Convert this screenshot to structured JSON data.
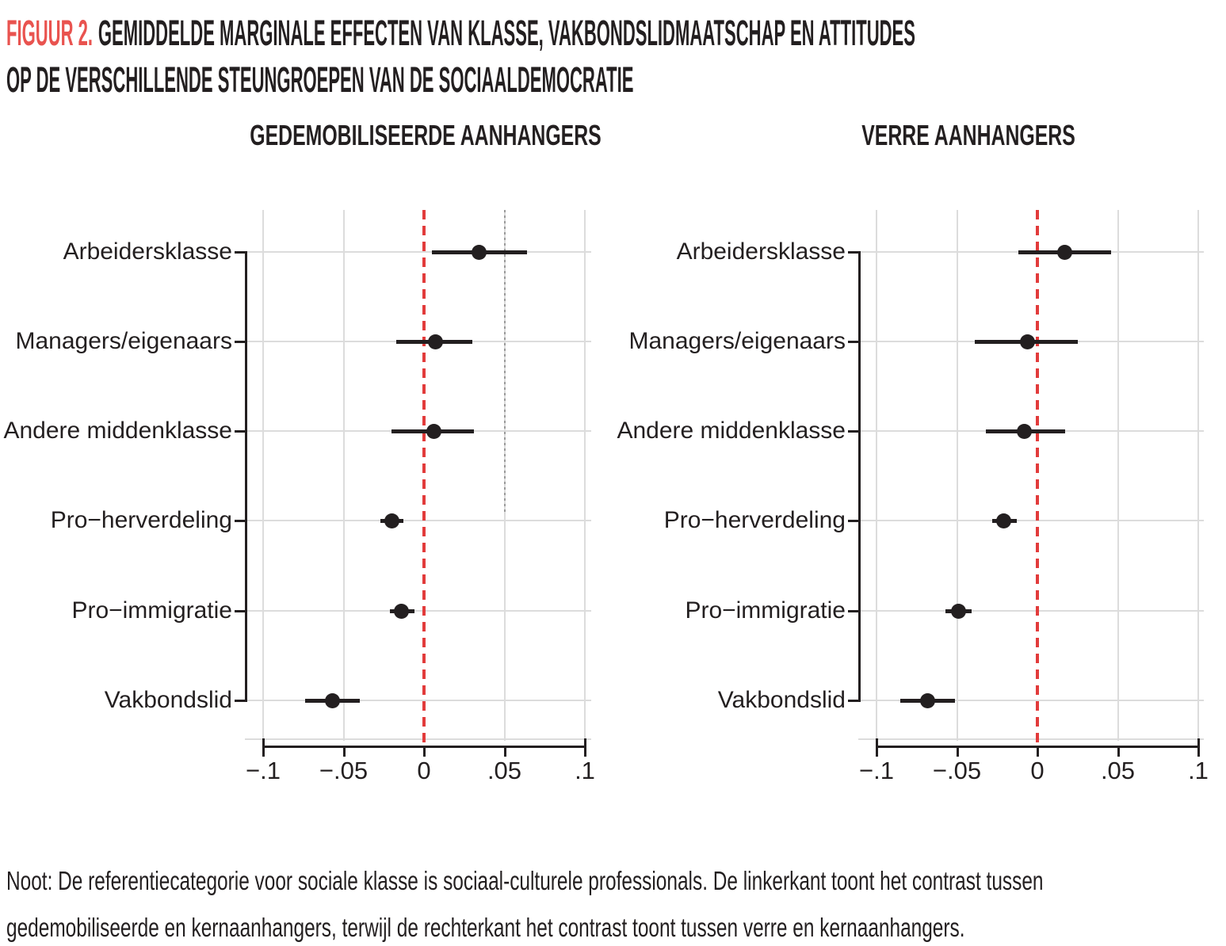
{
  "figure": {
    "label": "FIGUUR 2.",
    "title_line1": "GEMIDDELDE MARGINALE EFFECTEN VAN KLASSE, VAKBONDSLIDMAATSCHAP EN ATTITUDES",
    "title_line2": "OP DE VERSCHILLENDE STEUNGROEPEN VAN DE SOCIAALDEMOCRATIE",
    "note_line1": "Noot: De referentiecategorie voor sociale klasse is sociaal-culturele professionals. De linkerkant toont het contrast tussen",
    "note_line2": "gedemobiliseerde en kernaanhangers, terwijl de rechterkant het contrast toont tussen verre en kernaanhangers."
  },
  "colors": {
    "figure_label_red": "#e9534f",
    "zero_line_red": "#e23b3b",
    "gridline_gray": "#dcdcdc",
    "dotted_guide_gray": "#9a9a9a",
    "ink_black": "#231f20"
  },
  "chart_data": [
    {
      "type": "scatter",
      "subtype": "coefficient-dot-whisker",
      "title": "GEDEMOBILISEERDE AANHANGERS",
      "categories": [
        "Arbeidersklasse",
        "Managers/eigenaars",
        "Andere middenklasse",
        "Pro−herverdeling",
        "Pro−immigratie",
        "Vakbondslid"
      ],
      "series": [
        {
          "name": "Gemiddeld marginaal effect",
          "estimates": [
            0.034,
            0.007,
            0.006,
            -0.02,
            -0.014,
            -0.057
          ],
          "ci_low": [
            0.005,
            -0.017,
            -0.02,
            -0.027,
            -0.021,
            -0.074
          ],
          "ci_high": [
            0.064,
            0.03,
            0.031,
            -0.013,
            -0.006,
            -0.04
          ]
        }
      ],
      "x_ticks": [
        "−.1",
        "−.05",
        "0",
        ".05",
        ".1"
      ],
      "x_tick_values": [
        -0.1,
        -0.05,
        0,
        0.05,
        0.1
      ],
      "xlim": [
        -0.111,
        0.104
      ],
      "xlabel": "",
      "ylabel": "",
      "zero_line": {
        "x": 0,
        "style": "dashed"
      },
      "annotations": [
        {
          "type": "dotted-vline",
          "x": 0.05,
          "extent": "plot-top-to-fourth-row"
        }
      ],
      "grid": true,
      "legend": false
    },
    {
      "type": "scatter",
      "subtype": "coefficient-dot-whisker",
      "title": "VERRE AANHANGERS",
      "categories": [
        "Arbeidersklasse",
        "Managers/eigenaars",
        "Andere middenklasse",
        "Pro−herverdeling",
        "Pro−immigratie",
        "Vakbondslid"
      ],
      "series": [
        {
          "name": "Gemiddeld marginaal effect",
          "estimates": [
            0.017,
            -0.006,
            -0.008,
            -0.021,
            -0.049,
            -0.068
          ],
          "ci_low": [
            -0.012,
            -0.039,
            -0.032,
            -0.028,
            -0.057,
            -0.085
          ],
          "ci_high": [
            0.046,
            0.025,
            0.017,
            -0.013,
            -0.041,
            -0.051
          ]
        }
      ],
      "x_ticks": [
        "−.1",
        "−.05",
        "0",
        ".05",
        ".1"
      ],
      "x_tick_values": [
        -0.1,
        -0.05,
        0,
        0.05,
        0.1
      ],
      "xlim": [
        -0.111,
        0.104
      ],
      "xlabel": "",
      "ylabel": "",
      "zero_line": {
        "x": 0,
        "style": "dashed"
      },
      "annotations": [],
      "grid": true,
      "legend": false
    }
  ]
}
